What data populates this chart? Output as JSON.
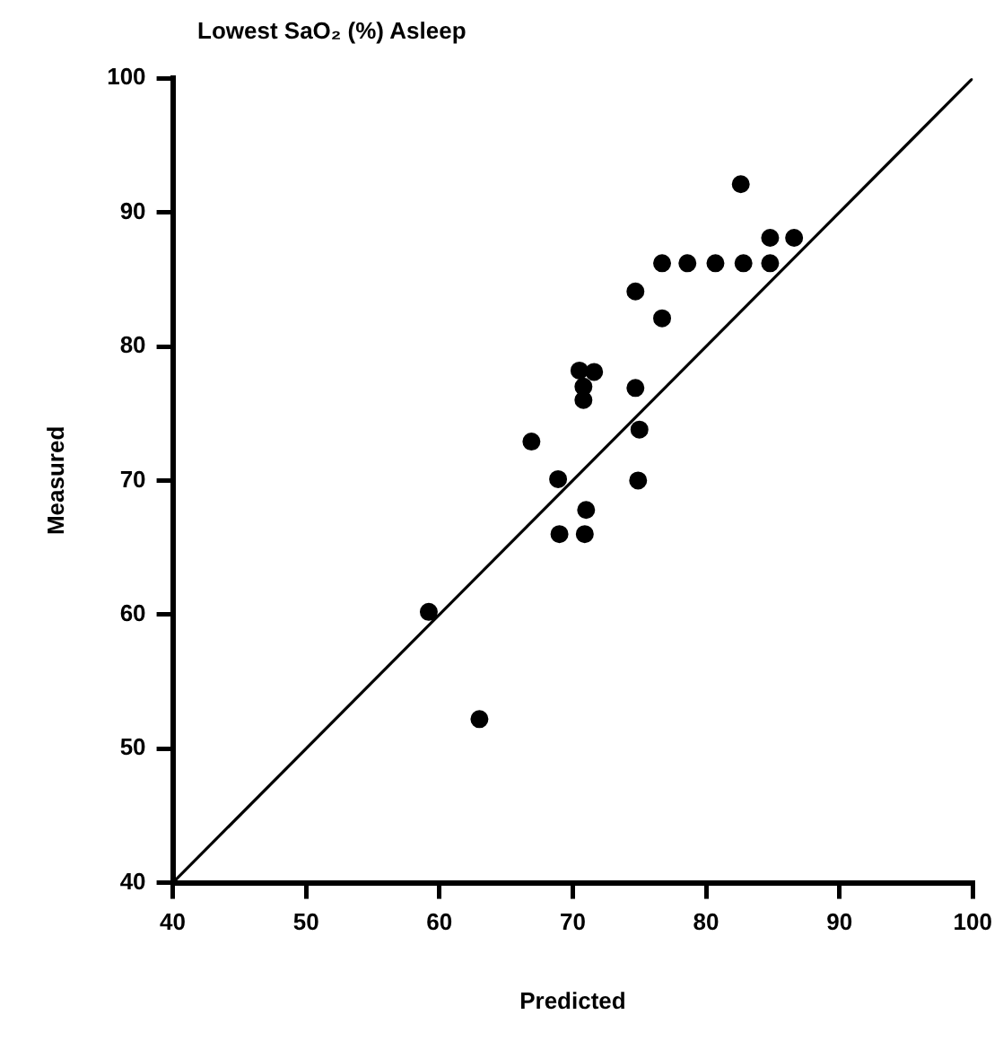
{
  "chart_data": {
    "type": "scatter",
    "title": "Lowest SaO₂ (%) Asleep",
    "xlabel": "Predicted",
    "ylabel": "Measured",
    "xlim": [
      40,
      100
    ],
    "xticks": [
      40,
      50,
      60,
      70,
      80,
      90,
      100
    ],
    "ylim": [
      40,
      100
    ],
    "yticks": [
      40,
      50,
      60,
      70,
      80,
      90,
      100
    ],
    "grid": false,
    "legend": false,
    "marker": "circle",
    "series": [
      {
        "color": "#000000",
        "x": [
          59.2,
          63,
          82.6,
          84.8,
          86.6,
          76.7,
          78.6,
          80.7,
          82.8,
          84.8,
          74.7,
          76.7,
          70.5,
          71.6,
          70.8,
          70.8,
          74.7,
          75,
          66.9,
          68.9,
          74.9,
          71,
          69,
          70.9
        ],
        "values": [
          60.2,
          52.2,
          92.1,
          88.1,
          88.1,
          86.2,
          86.2,
          86.2,
          86.2,
          86.2,
          84.1,
          82.1,
          78.2,
          78.1,
          77,
          76,
          76.9,
          73.8,
          72.9,
          70.1,
          70,
          67.8,
          66,
          66
        ]
      },
      {
        "type": "line",
        "color": "#000000",
        "x": [
          40,
          100
        ],
        "values": [
          40,
          100
        ],
        "marker": "none"
      }
    ]
  }
}
